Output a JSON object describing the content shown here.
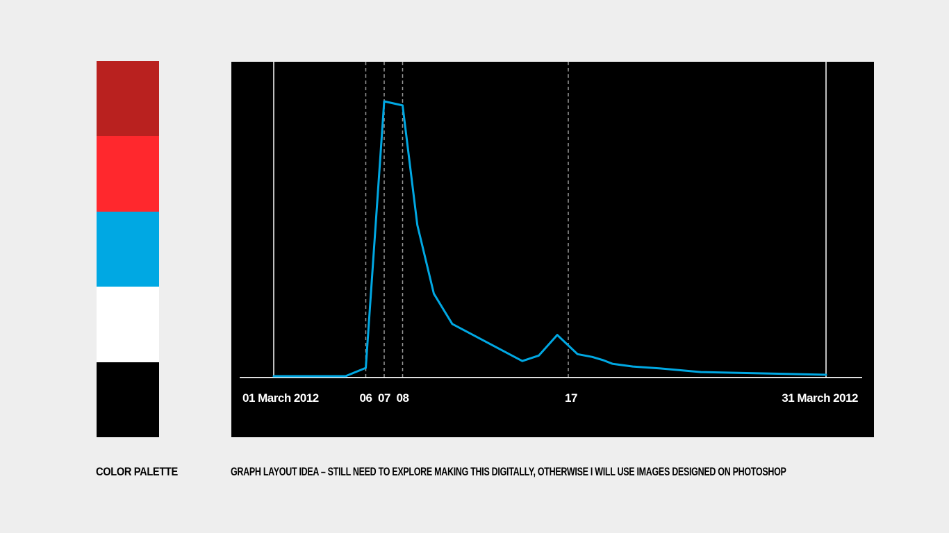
{
  "palette": {
    "caption": "COLOR PALETTE",
    "swatches": [
      {
        "name": "dark-red",
        "color": "#b9211f"
      },
      {
        "name": "red",
        "color": "#ff282d"
      },
      {
        "name": "blue",
        "color": "#00a8e3"
      },
      {
        "name": "white",
        "color": "#ffffff"
      },
      {
        "name": "black",
        "color": "#000000"
      }
    ]
  },
  "graph": {
    "caption": "GRAPH LAYOUT IDEA – STILL NEED TO EXPLORE MAKING THIS DIGITALLY, OTHERWISE I WILL USE IMAGES DESIGNED ON PHOTOSHOP"
  },
  "chart_data": {
    "type": "line",
    "title": "",
    "xlabel": "",
    "ylabel": "",
    "x_range": [
      1,
      31
    ],
    "ylim": [
      0,
      100
    ],
    "grid": false,
    "background_color": "#000000",
    "line_color": "#00a8e3",
    "axis_color": "#ffffff",
    "marker_line_color": "#999999",
    "tick_labels": [
      {
        "x": 1,
        "label": "01 March 2012"
      },
      {
        "x": 6,
        "label": "06"
      },
      {
        "x": 7,
        "label": "07"
      },
      {
        "x": 8,
        "label": "08"
      },
      {
        "x": 17,
        "label": "17"
      },
      {
        "x": 31,
        "label": "31 March 2012"
      }
    ],
    "boundary_lines_at": [
      1,
      31
    ],
    "dashed_lines_at": [
      6,
      7,
      8,
      17
    ],
    "series": [
      {
        "x": [
          1,
          4.9,
          6,
          7,
          8,
          8.8,
          9.7,
          10.7,
          14.5,
          15.4,
          16.4,
          17.5,
          18.3,
          18.9,
          19.4,
          20.5,
          22,
          24.2,
          31
        ],
        "values": [
          0,
          0,
          3,
          100,
          98.5,
          55,
          30,
          19,
          5.5,
          7.5,
          15,
          8,
          7,
          5.8,
          4.5,
          3.5,
          2.8,
          1.5,
          0.5
        ]
      }
    ]
  }
}
